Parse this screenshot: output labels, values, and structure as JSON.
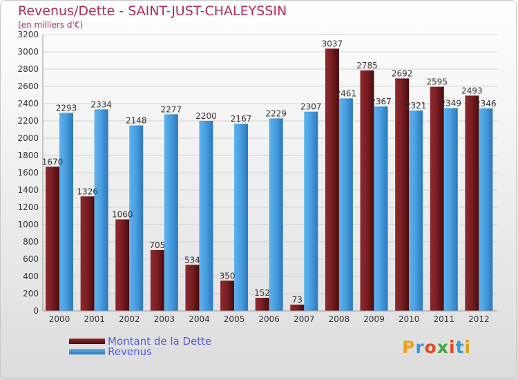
{
  "chart_data": {
    "type": "bar",
    "title": "Revenus/Dette - SAINT-JUST-CHALEYSSIN",
    "subtitle": "(en milliers d'€)",
    "categories": [
      "2000",
      "2001",
      "2002",
      "2003",
      "2004",
      "2005",
      "2006",
      "2007",
      "2008",
      "2009",
      "2010",
      "2011",
      "2012"
    ],
    "series": [
      {
        "name": "Montant de la Dette",
        "color": "#7a1f23",
        "values": [
          1670,
          1326,
          1060,
          705,
          534,
          350,
          152,
          73,
          3037,
          2785,
          2692,
          2595,
          2493
        ]
      },
      {
        "name": "Revenus",
        "color": "#4a9fe0",
        "values": [
          2293,
          2334,
          2148,
          2277,
          2200,
          2167,
          2229,
          2307,
          2461,
          2367,
          2321,
          2349,
          2346
        ]
      }
    ],
    "ylim": [
      0,
      3200
    ],
    "yticks": [
      0,
      200,
      400,
      600,
      800,
      1000,
      1200,
      1400,
      1600,
      1800,
      2000,
      2200,
      2400,
      2600,
      2800,
      3000,
      3200
    ],
    "grid": true,
    "legend_position": "bottom-left"
  },
  "logo": {
    "letters": [
      "P",
      "r",
      "o",
      "x",
      "i",
      "t",
      "i"
    ],
    "colors": [
      "#f0a020",
      "#3a9ad8",
      "#e04a20",
      "#3aa840",
      "#e04a20",
      "#3a9ad8",
      "#e0a020"
    ]
  }
}
